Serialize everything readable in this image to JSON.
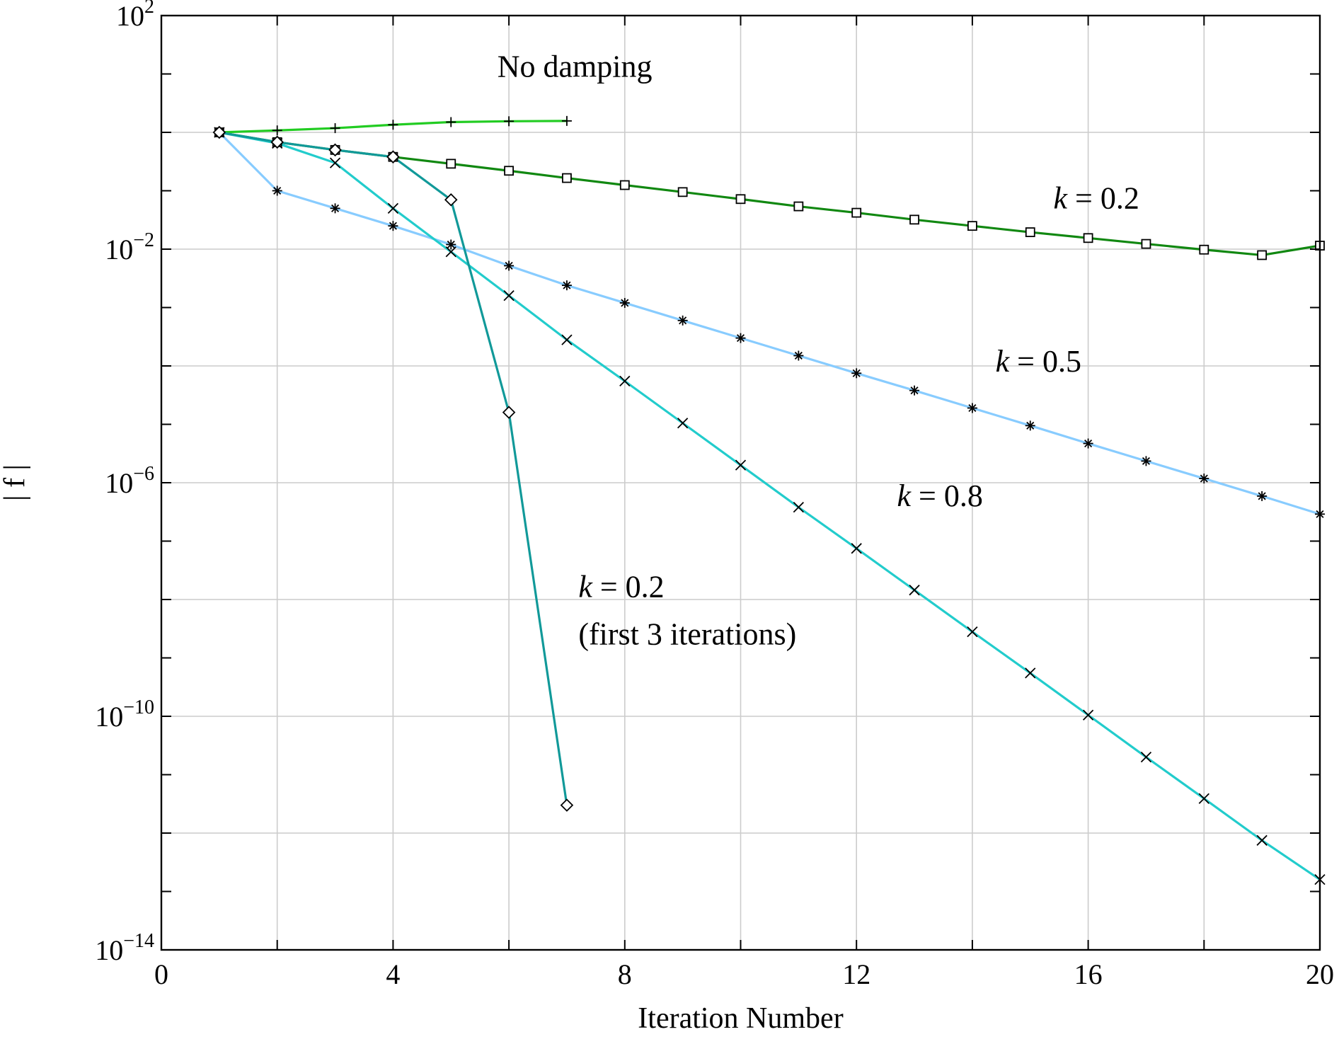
{
  "chart_data": {
    "type": "line",
    "xlabel": "Iteration Number",
    "ylabel": "| f |",
    "xlim": [
      0,
      20
    ],
    "ylim": [
      1e-14,
      100
    ],
    "yscale": "log",
    "grid": true,
    "x_ticks": [
      {
        "value": 0,
        "label": "0"
      },
      {
        "value": 4,
        "label": "4"
      },
      {
        "value": 8,
        "label": "8"
      },
      {
        "value": 12,
        "label": "12"
      },
      {
        "value": 16,
        "label": "16"
      },
      {
        "value": 20,
        "label": "20"
      }
    ],
    "y_ticks": [
      {
        "value": 100,
        "base": "10",
        "exp": "2"
      },
      {
        "value": 0.01,
        "base": "10",
        "exp": "−2"
      },
      {
        "value": 1e-06,
        "base": "10",
        "exp": "−6"
      },
      {
        "value": 1e-10,
        "base": "10",
        "exp": "−10"
      },
      {
        "value": 1e-14,
        "base": "10",
        "exp": "−14"
      }
    ],
    "series": [
      {
        "color": "#22cc22",
        "marker": "plus",
        "x": [
          1,
          2,
          3,
          4,
          5,
          6,
          7
        ],
        "y": [
          1.0,
          1.08,
          1.18,
          1.35,
          1.5,
          1.55,
          1.57
        ]
      },
      {
        "color": "#118811",
        "marker": "square",
        "x": [
          1,
          2,
          3,
          4,
          5,
          6,
          7,
          8,
          9,
          10,
          11,
          12,
          13,
          14,
          15,
          16,
          17,
          18,
          19,
          20
        ],
        "y": [
          1.0,
          0.68,
          0.5,
          0.38,
          0.29,
          0.22,
          0.165,
          0.125,
          0.095,
          0.072,
          0.054,
          0.042,
          0.032,
          0.025,
          0.0195,
          0.0155,
          0.0123,
          0.0098,
          0.0079,
          0.0115
        ]
      },
      {
        "color": "#88ccff",
        "marker": "asterisk",
        "x": [
          1,
          2,
          3,
          4,
          5,
          6,
          7,
          8,
          9,
          10,
          11,
          12,
          13,
          14,
          15,
          16,
          17,
          18,
          19,
          20
        ],
        "y": [
          1.0,
          0.1,
          0.05,
          0.025,
          0.012,
          0.0052,
          0.0024,
          0.0012,
          0.0006,
          0.0003,
          0.00015,
          7.5e-05,
          3.8e-05,
          1.9e-05,
          9.5e-06,
          4.7e-06,
          2.35e-06,
          1.18e-06,
          5.9e-07,
          2.9e-07
        ]
      },
      {
        "color": "#22cccc",
        "marker": "x",
        "x": [
          1,
          2,
          3,
          4,
          5,
          6,
          7,
          8,
          9,
          10,
          11,
          12,
          13,
          14,
          15,
          16,
          17,
          18,
          19,
          20
        ],
        "y": [
          1.0,
          0.65,
          0.3,
          0.05,
          0.009,
          0.0016,
          0.00028,
          5.5e-05,
          1.05e-05,
          2e-06,
          3.8e-07,
          7.5e-08,
          1.45e-08,
          2.8e-09,
          5.5e-10,
          1.05e-10,
          2e-11,
          3.9e-12,
          7.5e-13,
          1.6e-13
        ]
      },
      {
        "color": "#119999",
        "marker": "diamond",
        "x": [
          1,
          2,
          3,
          4,
          5,
          6,
          7
        ],
        "y": [
          1.0,
          0.68,
          0.5,
          0.38,
          0.07,
          1.6e-05,
          3e-12
        ]
      }
    ],
    "annotations": [
      {
        "text": "No damping",
        "x": 5.8,
        "y": 9.0
      },
      {
        "italic": "k",
        "text": " = 0.2",
        "x": 15.4,
        "y": 0.05
      },
      {
        "italic": "k",
        "text": " = 0.5",
        "x": 14.4,
        "y": 8e-05
      },
      {
        "italic": "k",
        "text": " = 0.8",
        "x": 12.7,
        "y": 4e-07
      },
      {
        "italic": "k",
        "text": " = 0.2",
        "x": 7.2,
        "y": 1.1e-08
      },
      {
        "text": "(first 3 iterations)",
        "x": 7.2,
        "y": 1.7e-09
      }
    ]
  }
}
